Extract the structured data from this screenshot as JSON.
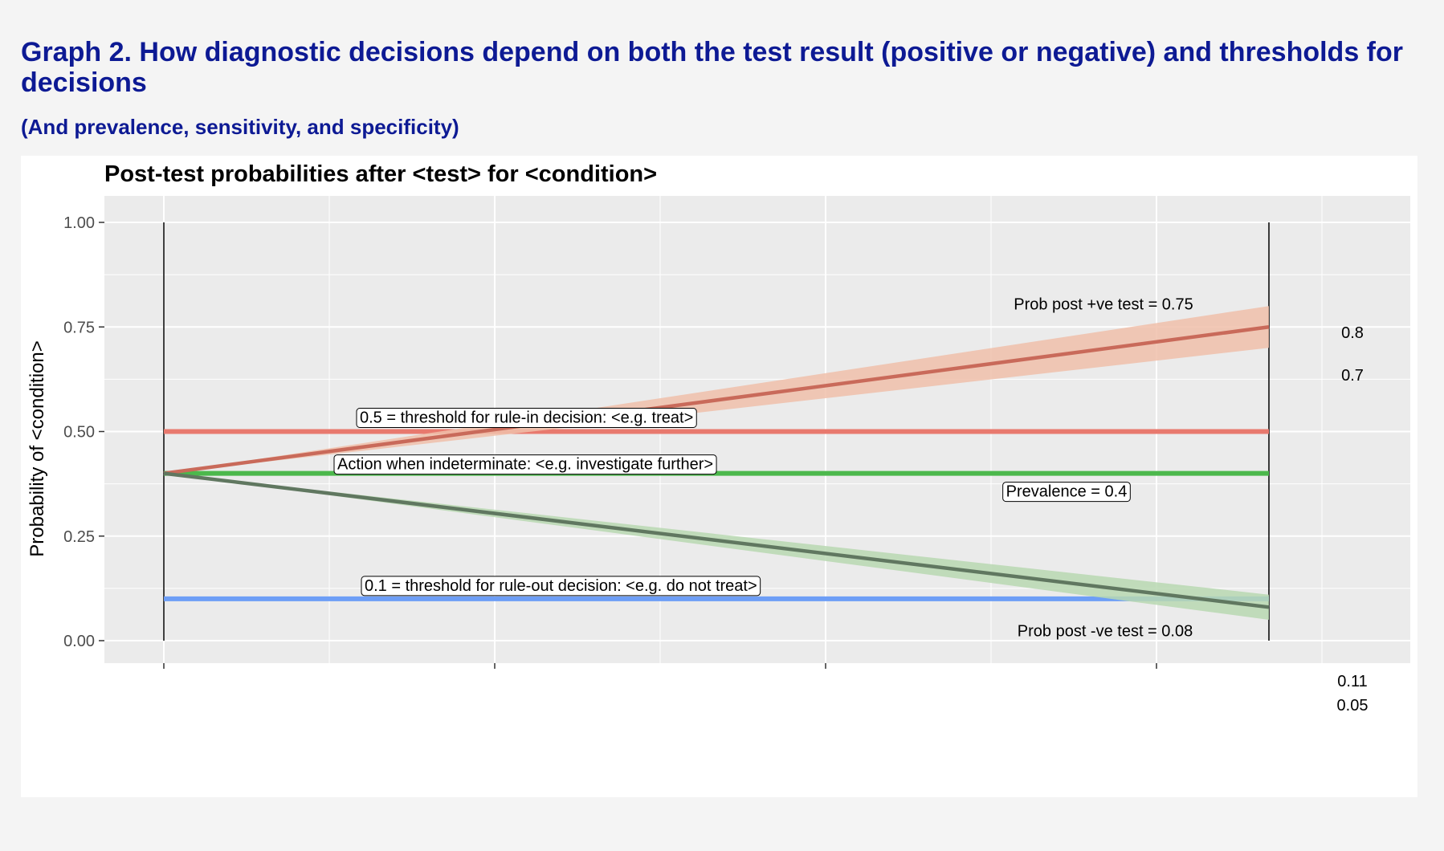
{
  "header": {
    "title_prefix": "Graph 2.",
    "title_text": "How diagnostic decisions depend on both the test result (positive or negative) and thresholds for decisions",
    "subtitle": "(And prevalence, sensitivity, and specificity)"
  },
  "chart_data": {
    "type": "line",
    "title": "Post-test probabilities after <test> for <condition>",
    "ylabel": "Probability of <condition>",
    "xlabel": "",
    "ylim": [
      0,
      1
    ],
    "yticks": [
      0,
      0.25,
      0.5,
      0.75,
      1
    ],
    "ytick_labels": [
      "0.00",
      "0.25",
      "0.50",
      "0.75",
      "1.00"
    ],
    "grid": true,
    "series": [
      {
        "role": "positive",
        "x": [
          0,
          1
        ],
        "y": [
          0.4,
          0.75
        ],
        "band_low": [
          0.4,
          0.7
        ],
        "band_high": [
          0.4,
          0.8
        ],
        "color": "#c96a5a",
        "band_color": "#f0bfaa"
      },
      {
        "role": "negative",
        "x": [
          0,
          1
        ],
        "y": [
          0.4,
          0.08
        ],
        "band_low": [
          0.4,
          0.05
        ],
        "band_high": [
          0.4,
          0.11
        ],
        "color": "#607760",
        "band_color": "#b9d8b2"
      }
    ],
    "thresholds": [
      {
        "role": "rule-in",
        "y": 0.5,
        "color": "#e8796e",
        "label": "0.5 = threshold for rule-in decision: <e.g. treat>"
      },
      {
        "role": "indeterminate",
        "y": 0.4,
        "color": "#4cb84c",
        "label": "Action when indeterminate: <e.g. investigate further>"
      },
      {
        "role": "rule-out",
        "y": 0.1,
        "color": "#6d9ef6",
        "label": "0.1 = threshold for rule-out decision: <e.g. do not treat>"
      }
    ],
    "annotations": {
      "prevalence": "Prevalence = 0.4",
      "prob_pos": "Prob post +ve test = 0.75",
      "prob_neg": "Prob post -ve test = 0.08",
      "ci_pos_high": "0.8",
      "ci_pos_low": "0.7",
      "ci_neg_high": "0.11",
      "ci_neg_low": "0.05"
    }
  }
}
